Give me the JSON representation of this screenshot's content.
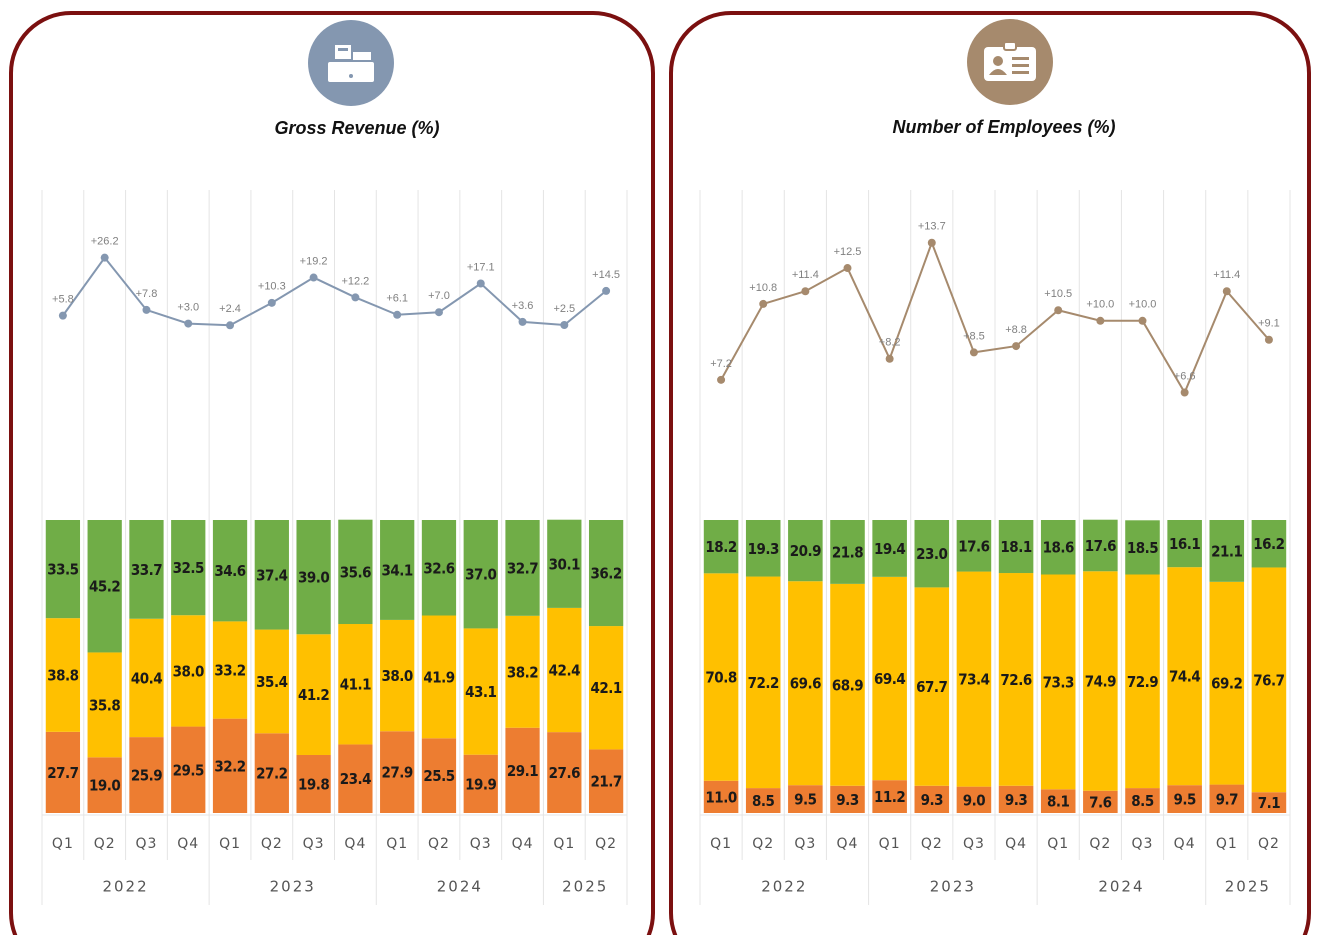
{
  "chart_data": [
    {
      "type": "bar",
      "title": "Gross Revenue (%)",
      "categories": [
        "Q1",
        "Q2",
        "Q3",
        "Q4",
        "Q1",
        "Q2",
        "Q3",
        "Q4",
        "Q1",
        "Q2",
        "Q3",
        "Q4",
        "Q1",
        "Q2"
      ],
      "years": [
        "2022",
        null,
        null,
        null,
        "2023",
        null,
        null,
        null,
        "2024",
        null,
        null,
        null,
        "2025",
        null
      ],
      "ylim": [
        0,
        100
      ],
      "y2lim": [
        -45,
        50
      ],
      "series": [
        {
          "color": "#ed7d31",
          "values": [
            27.7,
            19.0,
            25.9,
            29.5,
            32.2,
            27.2,
            19.8,
            23.4,
            27.9,
            25.5,
            19.9,
            29.1,
            27.6,
            21.7
          ],
          "value_labels": [
            "27.7",
            "19.0",
            "25.9",
            "29.5",
            "32.2",
            "27.2",
            "19.8",
            "23.4",
            "27.9",
            "25.5",
            "19.9",
            "29.1",
            "27.6",
            "21.7"
          ]
        },
        {
          "color": "#ffc000",
          "values": [
            38.8,
            35.8,
            40.4,
            38.0,
            33.2,
            35.4,
            41.2,
            41.1,
            38.0,
            41.9,
            43.1,
            38.2,
            42.4,
            42.1
          ],
          "value_labels": [
            "38.8",
            "35.8",
            "40.4",
            "38.0",
            "33.2",
            "35.4",
            "41.2",
            "41.1",
            "38.0",
            "41.9",
            "43.1",
            "38.2",
            "42.4",
            "42.1"
          ]
        },
        {
          "color": "#70ad47",
          "values": [
            33.5,
            45.2,
            33.7,
            32.5,
            34.6,
            37.4,
            39.0,
            35.6,
            34.1,
            32.6,
            37.0,
            32.7,
            30.1,
            36.2
          ],
          "value_labels": [
            "33.5",
            "45.2",
            "33.7",
            "32.5",
            "34.6",
            "37.4",
            "39.0",
            "35.6",
            "34.1",
            "32.6",
            "37.0",
            "32.7",
            "30.1",
            "36.2"
          ]
        },
        {
          "type": "line",
          "axis": "y2",
          "color": "#8497b0",
          "values": [
            5.8,
            26.2,
            7.8,
            3.0,
            2.4,
            10.3,
            19.2,
            12.2,
            6.1,
            7.0,
            17.1,
            3.6,
            2.5,
            14.5
          ],
          "value_labels": [
            "+5.8",
            "+26.2",
            "+7.8",
            "+3.0",
            "+2.4",
            "+10.3",
            "+19.2",
            "+12.2",
            "+6.1",
            "+7.0",
            "+17.1",
            "+3.6",
            "+2.5",
            "+14.5"
          ]
        }
      ]
    },
    {
      "type": "bar",
      "title": "Number of Employees (%)",
      "categories": [
        "Q1",
        "Q2",
        "Q3",
        "Q4",
        "Q1",
        "Q2",
        "Q3",
        "Q4",
        "Q1",
        "Q2",
        "Q3",
        "Q4",
        "Q1",
        "Q2"
      ],
      "years": [
        "2022",
        null,
        null,
        null,
        "2023",
        null,
        null,
        null,
        "2024",
        null,
        null,
        null,
        "2025",
        null
      ],
      "ylim": [
        0,
        100
      ],
      "y2lim": [
        3.4,
        16.2
      ],
      "series": [
        {
          "color": "#ed7d31",
          "values": [
            11.0,
            8.5,
            9.5,
            9.3,
            11.2,
            9.3,
            9.0,
            9.3,
            8.1,
            7.6,
            8.5,
            9.5,
            9.7,
            7.1
          ],
          "value_labels": [
            "11.0",
            "8.5",
            "9.5",
            "9.3",
            "11.2",
            "9.3",
            "9.0",
            "9.3",
            "8.1",
            "7.6",
            "8.5",
            "9.5",
            "9.7",
            "7.1"
          ]
        },
        {
          "color": "#ffc000",
          "values": [
            70.8,
            72.2,
            69.6,
            68.9,
            69.4,
            67.7,
            73.4,
            72.6,
            73.3,
            74.9,
            72.9,
            74.4,
            69.2,
            76.7
          ],
          "value_labels": [
            "70.8",
            "72.2",
            "69.6",
            "68.9",
            "69.4",
            "67.7",
            "73.4",
            "72.6",
            "73.3",
            "74.9",
            "72.9",
            "74.4",
            "69.2",
            "76.7"
          ]
        },
        {
          "color": "#70ad47",
          "values": [
            18.2,
            19.3,
            20.9,
            21.8,
            19.4,
            23.0,
            17.6,
            18.1,
            18.6,
            17.6,
            18.5,
            16.1,
            21.1,
            16.2
          ],
          "value_labels": [
            "18.2",
            "19.3",
            "20.9",
            "21.8",
            "19.4",
            "23.0",
            "17.6",
            "18.1",
            "18.6",
            "17.6",
            "18.5",
            "16.1",
            "21.1",
            "16.2"
          ]
        },
        {
          "type": "line",
          "axis": "y2",
          "color": "#a68a6d",
          "values": [
            7.2,
            10.8,
            11.4,
            12.5,
            8.2,
            13.7,
            8.5,
            8.8,
            10.5,
            10.0,
            10.0,
            6.6,
            11.4,
            9.1
          ],
          "value_labels": [
            "+7.2",
            "+10.8",
            "+11.4",
            "+12.5",
            "+8.2",
            "+13.7",
            "+8.5",
            "+8.8",
            "+10.5",
            "+10.0",
            "+10.0",
            "+6.6",
            "+11.4",
            "+9.1"
          ]
        }
      ]
    }
  ]
}
